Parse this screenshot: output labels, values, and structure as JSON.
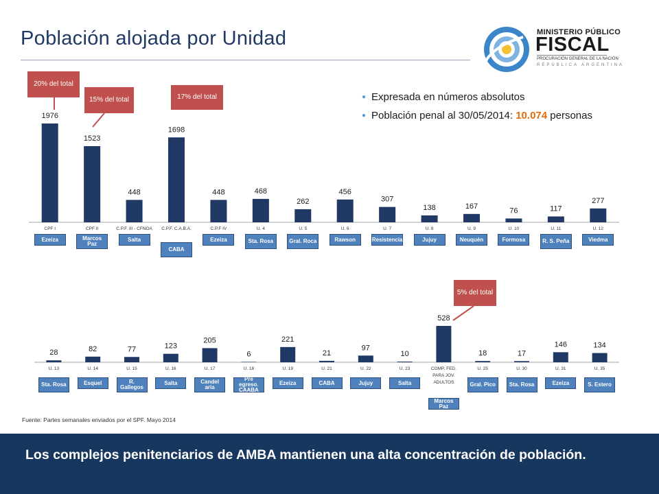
{
  "page": {
    "title": "Población alojada por Unidad",
    "bullets": [
      {
        "text": "Expresada en números absolutos"
      },
      {
        "text_prefix": "Población penal al 30/05/2014: ",
        "highlight": "10.074",
        "text_suffix": " personas"
      }
    ],
    "source": "Fuente: Partes semanales enviados por el SPF. Mayo 2014",
    "footer": "Los complejos penitenciarios de AMBA mantienen una alta concentración de población.",
    "logo": {
      "line1": "MINISTERIO PÚBLICO",
      "line2": "FISCAL",
      "line3": "PROCURACIÓN GENERAL DE LA NACIÓN",
      "line4": "REPÚBLICA ARGENTINA"
    },
    "colors": {
      "bar": "#1f3864",
      "tag": "#4f81bd",
      "callout": "#c0504d",
      "highlight": "#e36c09",
      "footer": "#17375e"
    }
  },
  "chart_data": [
    {
      "type": "bar",
      "categories": [
        "CPF I",
        "CPF II",
        "C.P.F. III - CFNOA",
        "C.P.F. C.A.B.A.",
        "C.P.F IV",
        "U. 4",
        "U. 5",
        "U. 6",
        "U. 7",
        "U. 8",
        "U. 9",
        "U. 10",
        "U. 11",
        "U. 12"
      ],
      "values": [
        1976,
        1523,
        448,
        1698,
        448,
        468,
        262,
        456,
        307,
        138,
        167,
        76,
        117,
        277
      ],
      "locations": [
        "Ezeiza",
        "Marcos Paz",
        "Salta",
        "CABA",
        "Ezeiza",
        "Sta. Rosa",
        "Gral. Roca",
        "Rawson",
        "Resistencia",
        "Jujuy",
        "Neuquén",
        "Formosa",
        "R. S. Peña",
        "Viedma"
      ],
      "callouts": [
        {
          "category": "CPF I",
          "text": "20% del total"
        },
        {
          "category": "CPF II",
          "text": "15% del total"
        },
        {
          "category": "C.P.F. C.A.B.A.",
          "text": "17% del total"
        }
      ]
    },
    {
      "type": "bar",
      "categories": [
        "U. 13",
        "U. 14",
        "U. 15",
        "U. 16",
        "U. 17",
        "U. 18",
        "U. 19",
        "U. 21",
        "U. 22",
        "U. 23",
        "COMP. FED. PARA JOV. ADULTOS",
        "U. 25",
        "U. 30",
        "U. 31",
        "U. 35"
      ],
      "values": [
        28,
        82,
        77,
        123,
        205,
        6,
        221,
        21,
        97,
        10,
        528,
        18,
        17,
        146,
        134
      ],
      "locations": [
        "Sta. Rosa",
        "Esquel",
        "R. Gallegos",
        "Salta",
        "Candel aria",
        "Pre egreso. CAABA",
        "Ezeiza",
        "CABA",
        "Jujuy",
        "Salta",
        "Marcos Paz",
        "Gral. Pico",
        "Sta. Rosa",
        "Ezeiza",
        "S. Estero"
      ],
      "callouts": [
        {
          "category": "COMP. FED. PARA JOV. ADULTOS",
          "text": "5% del total"
        }
      ]
    }
  ]
}
